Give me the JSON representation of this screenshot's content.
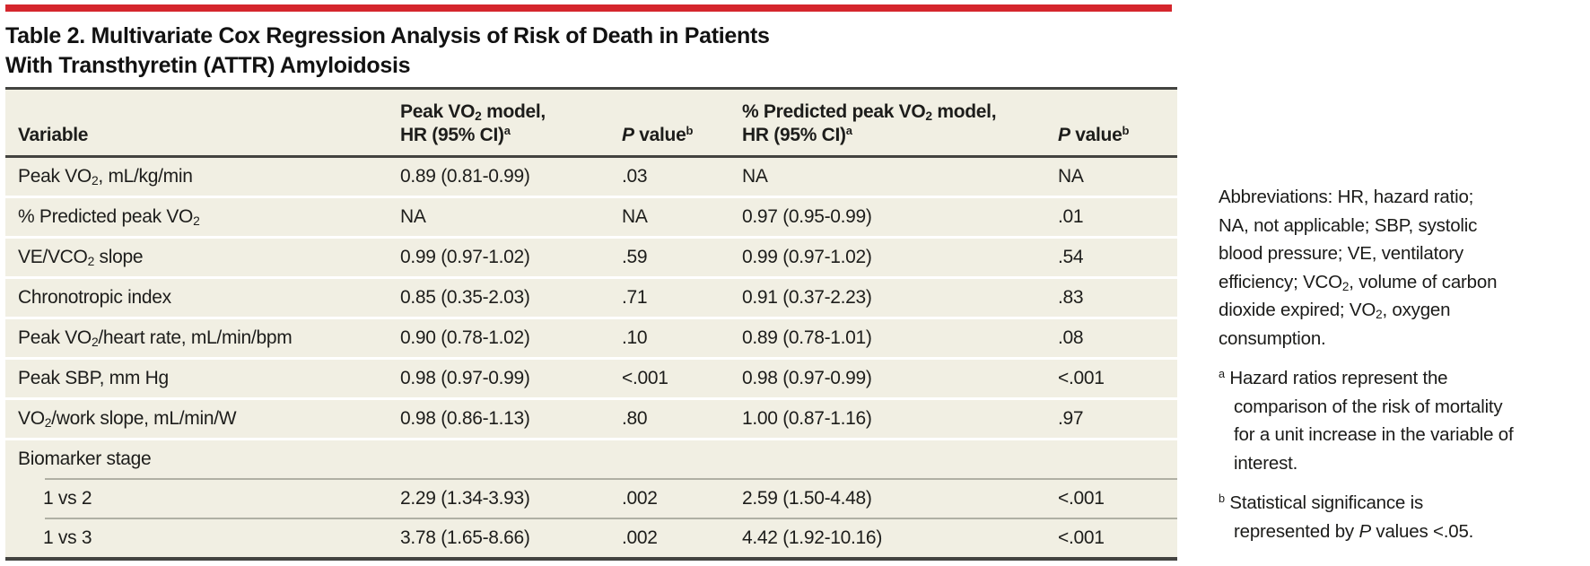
{
  "colors": {
    "accent_red": "#d5262d",
    "table_background": "#f1efe3",
    "rule_dark": "#434340",
    "text": "#1d1d1b"
  },
  "title": {
    "line1": "Table 2. Multivariate Cox Regression Analysis of Risk of Death in Patients",
    "line2": "With Transthyretin (ATTR) Amyloidosis"
  },
  "table": {
    "header": {
      "variable": "Variable",
      "model1_html": "Peak VO<sub>2</sub> model,<br>HR (95% CI)<sup>a</sup>",
      "p1_html": "<i>P</i> value<sup>b</sup>",
      "model2_html": "% Predicted peak VO<sub>2</sub> model,<br>HR (95% CI)<sup>a</sup>",
      "p2_html": "<i>P</i> value<sup>b</sup>"
    },
    "rows": [
      {
        "variable_html": "Peak VO<sub>2</sub>, mL/kg/min",
        "hr1": "0.89 (0.81-0.99)",
        "p1": ".03",
        "hr2": "NA",
        "p2": "NA"
      },
      {
        "variable_html": "% Predicted peak VO<sub>2</sub>",
        "hr1": "NA",
        "p1": "NA",
        "hr2": "0.97 (0.95-0.99)",
        "p2": ".01"
      },
      {
        "variable_html": "VE/VCO<sub>2</sub> slope",
        "hr1": "0.99 (0.97-1.02)",
        "p1": ".59",
        "hr2": "0.99 (0.97-1.02)",
        "p2": ".54"
      },
      {
        "variable_html": "Chronotropic index",
        "hr1": "0.85 (0.35-2.03)",
        "p1": ".71",
        "hr2": "0.91 (0.37-2.23)",
        "p2": ".83"
      },
      {
        "variable_html": "Peak VO<sub>2</sub>/heart rate, mL/min/bpm",
        "hr1": "0.90 (0.78-1.02)",
        "p1": ".10",
        "hr2": "0.89 (0.78-1.01)",
        "p2": ".08"
      },
      {
        "variable_html": "Peak SBP, mm Hg",
        "hr1": "0.98 (0.97-0.99)",
        "p1": "<.001",
        "hr2": "0.98 (0.97-0.99)",
        "p2": "<.001"
      },
      {
        "variable_html": "VO<sub>2</sub>/work slope, mL/min/W",
        "hr1": "0.98 (0.86-1.13)",
        "p1": ".80",
        "hr2": "1.00 (0.87-1.16)",
        "p2": ".97"
      },
      {
        "variable_html": "Biomarker stage",
        "hr1": "",
        "p1": "",
        "hr2": "",
        "p2": ""
      },
      {
        "variable_html": "1 vs 2",
        "hr1": "2.29 (1.34-3.93)",
        "p1": ".002",
        "hr2": "2.59 (1.50-4.48)",
        "p2": "<.001"
      },
      {
        "variable_html": "1 vs 3",
        "hr1": "3.78 (1.65-8.66)",
        "p1": ".002",
        "hr2": "4.42 (1.92-10.16)",
        "p2": "<.001"
      }
    ]
  },
  "notes": {
    "abbreviations_html": "Abbreviations: HR, hazard ratio;<br>NA, not applicable; SBP, systolic<br>blood pressure; VE, ventilatory<br>efficiency; VCO<sub>2</sub>, volume of carbon<br>dioxide expired; VO<sub>2</sub>, oxygen<br>consumption.",
    "footnote_a_html": "<sup>a</sup>&nbsp;Hazard ratios represent the<br>comparison of the risk of mortality<br>for a unit increase in the variable of<br>interest.",
    "footnote_b_html": "<sup>b</sup>&nbsp;Statistical significance is<br>represented by <i>P</i> values &lt;.05."
  }
}
